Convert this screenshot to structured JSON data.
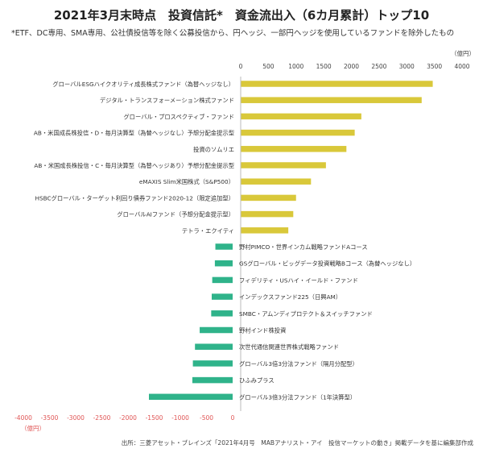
{
  "title": "2021年3月末時点　投資信託*　資金流出入（6カ月累計）トップ10",
  "subtitle": "*ETF、DC専用、SMA専用、公社債投信等を除く公募投信から、円ヘッジ、一部円ヘッジを使用しているファンドを除外したもの",
  "source": "出所：三菱アセット・ブレインズ「2021年4月号　MABアナリスト・アイ　投信マーケットの動き」掲載データを基に編集部作成",
  "colors": {
    "inflow": "#d9c83a",
    "outflow": "#2fb38a",
    "axis_top": "#444444",
    "axis_bottom": "#e05555"
  },
  "chart_data": [
    {
      "type": "bar",
      "orientation": "horizontal",
      "axis_position": "top",
      "unit_label": "（億円）",
      "xlim": [
        0,
        4000
      ],
      "ticks": [
        0,
        500,
        1000,
        1500,
        2000,
        2500,
        3000,
        3500,
        4000
      ],
      "grid": false,
      "categories": [
        "グローバルESGハイクオリティ成長株式ファンド（為替ヘッジなし）",
        "デジタル・トランスフォーメーション株式ファンド",
        "グローバル・プロスペクティブ・ファンド",
        "AB・米国成長株投信・D・毎月決算型（為替ヘッジなし）予想分配金提示型",
        "投資のソムリエ",
        "AB・米国成長株投信・C・毎月決算型（為替ヘッジあり）予想分配金提示型",
        "eMAXIS Slim米国株式（S&P500）",
        "HSBCグローバル・ターゲット利回り債券ファンド2020-12（限定追加型）",
        "グローバルAIファンド（予想分配金提示型）",
        "テトラ・エクイティ"
      ],
      "values": [
        3470,
        3270,
        2180,
        2060,
        1910,
        1540,
        1270,
        1000,
        950,
        860
      ]
    },
    {
      "type": "bar",
      "orientation": "horizontal",
      "axis_position": "bottom",
      "unit_label": "（億円）",
      "xlim": [
        -4000,
        0
      ],
      "ticks": [
        -4000,
        -3500,
        -3000,
        -2500,
        -2000,
        -1500,
        -1000,
        -500,
        0
      ],
      "grid": false,
      "categories": [
        "野村PIMCO・世界インカム戦略ファンドAコース",
        "GSグローバル・ビッグデータ投資戦略Bコース（為替ヘッジなし）",
        "フィデリティ・USハイ・イールド・ファンド",
        "インデックスファンド225（日興AM）",
        "SMBC・アムンディプロテクト＆スイッチファンド",
        "野村インド株投資",
        "次世代通信関連世界株式戦略ファンド",
        "グローバル3倍3分法ファンド（隔月分配型）",
        "ひふみプラス",
        "グローバル3倍3分法ファンド（1年決算型）"
      ],
      "values": [
        -330,
        -340,
        -390,
        -400,
        -410,
        -630,
        -720,
        -760,
        -770,
        -1600
      ]
    }
  ]
}
